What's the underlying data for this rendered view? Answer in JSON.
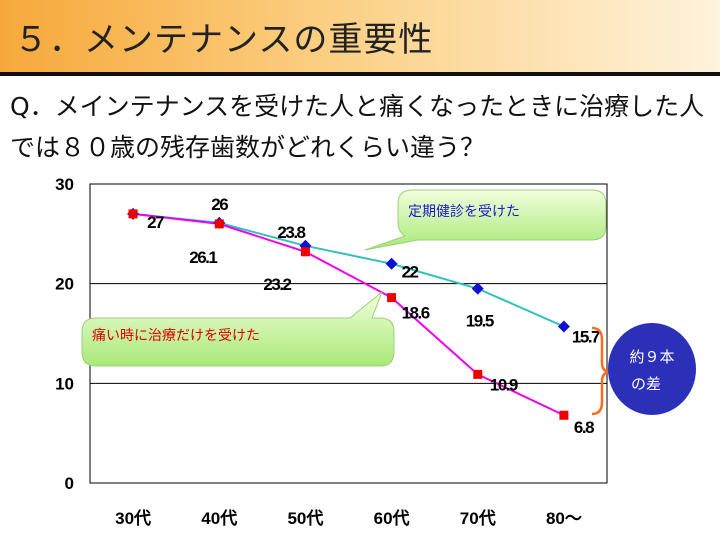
{
  "title": "５．メンテナンスの重要性",
  "question": "Q．メインテナンスを受けた人と痛くなったときに治療した人では８０歳の残存歯数がどれくらい違う？",
  "chart_data": {
    "type": "line",
    "categories": [
      "30代",
      "40代",
      "50代",
      "60代",
      "70代",
      "80〜"
    ],
    "ylim": [
      0,
      30
    ],
    "yticks": [
      0,
      10,
      20,
      30
    ],
    "grid": true,
    "series": [
      {
        "name": "定期健診を受けた",
        "color": "#33c0c0",
        "marker": "diamond",
        "marker_color": "#1010d0",
        "values": [
          27,
          26.1,
          23.8,
          22,
          19.5,
          15.7
        ],
        "labels": [
          "",
          "26.1",
          "23.8",
          "22",
          "19.5",
          "15.7"
        ]
      },
      {
        "name": "痛い時に治療だけを受けた",
        "color": "#ee00ee",
        "marker": "square",
        "marker_color": "#ee0000",
        "values": [
          27,
          26,
          23.2,
          18.6,
          10.9,
          6.8
        ],
        "labels": [
          "27",
          "26",
          "23.2",
          "18.6",
          "10.9",
          "6.8"
        ]
      }
    ],
    "annotations": {
      "regular_callout": "定期健診を受けた",
      "pain_callout": "痛い時に治療だけを受けた",
      "difference_line1": "約９本",
      "difference_line2": "の差"
    }
  }
}
